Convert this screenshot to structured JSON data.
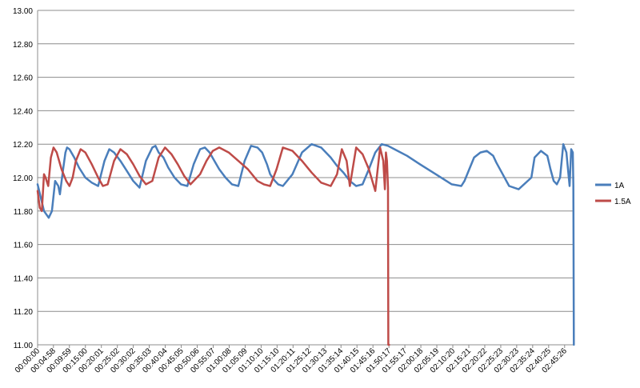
{
  "chart_data": {
    "type": "line",
    "title": "",
    "xlabel": "",
    "ylabel": "",
    "ylim": [
      11.0,
      13.0
    ],
    "yticks": [
      "11.00",
      "11.20",
      "11.40",
      "11.60",
      "11.80",
      "12.00",
      "12.20",
      "12.40",
      "12.60",
      "12.80",
      "13.00"
    ],
    "xlim": [
      "00:00:00",
      "02:48:30"
    ],
    "xticks": [
      "00:00:00",
      "00:04:58",
      "00:09:59",
      "00:15:00",
      "00:20:01",
      "00:25:02",
      "00:30:02",
      "00:35:03",
      "00:40:04",
      "00:45:05",
      "00:50:06",
      "00:55:07",
      "01:00:08",
      "01:05:09",
      "01:10:10",
      "01:15:10",
      "01:20:11",
      "01:25:12",
      "01:30:13",
      "01:35:14",
      "01:40:15",
      "01:45:16",
      "01:50:17",
      "01:55:17",
      "02:00:18",
      "02:05:19",
      "02:10:20",
      "02:15:21",
      "02:20:22",
      "02:25:23",
      "02:30:23",
      "02:35:24",
      "02:40:25",
      "02:45:26"
    ],
    "grid": true,
    "legend": "right",
    "series": [
      {
        "name": "1A",
        "color": "#4a7ebb",
        "x": [
          "00:00:00",
          "00:01:00",
          "00:02:00",
          "00:03:30",
          "00:04:30",
          "00:05:30",
          "00:06:30",
          "00:07:00",
          "00:08:00",
          "00:08:45",
          "00:09:15",
          "00:10:00",
          "00:11:30",
          "00:13:00",
          "00:15:00",
          "00:17:00",
          "00:19:00",
          "00:21:00",
          "00:22:30",
          "00:24:00",
          "00:26:00",
          "00:28:00",
          "00:30:00",
          "00:32:00",
          "00:34:00",
          "00:36:00",
          "00:37:00",
          "00:38:00",
          "00:39:30",
          "00:41:00",
          "00:43:00",
          "00:45:00",
          "00:47:00",
          "00:49:00",
          "00:51:00",
          "00:52:30",
          "00:54:00",
          "00:55:30",
          "00:57:00",
          "00:59:00",
          "01:01:00",
          "01:03:00",
          "01:05:00",
          "01:07:00",
          "01:09:00",
          "01:10:30",
          "01:12:00",
          "01:13:00",
          "01:14:30",
          "01:15:30",
          "01:17:00",
          "01:20:00",
          "01:23:00",
          "01:26:00",
          "01:29:00",
          "01:32:00",
          "01:34:00",
          "01:36:00",
          "01:38:00",
          "01:40:00",
          "01:42:00",
          "01:44:00",
          "01:46:00",
          "01:48:00",
          "01:50:00",
          "01:52:00",
          "01:56:00",
          "02:00:00",
          "02:05:00",
          "02:10:00",
          "02:13:00",
          "02:14:00",
          "02:15:30",
          "02:17:00",
          "02:19:00",
          "02:21:00",
          "02:23:00",
          "02:24:00",
          "02:26:00",
          "02:28:00",
          "02:31:00",
          "02:35:00",
          "02:36:00",
          "02:38:00",
          "02:40:00",
          "02:41:00",
          "02:42:00",
          "02:43:00",
          "02:44:00",
          "02:45:00",
          "02:46:00",
          "02:47:00",
          "02:47:30",
          "02:48:00",
          "02:48:10",
          "02:48:20"
        ],
        "y": [
          11.96,
          11.88,
          11.8,
          11.76,
          11.8,
          11.98,
          11.95,
          11.9,
          12.05,
          12.15,
          12.18,
          12.17,
          12.12,
          12.06,
          12.0,
          11.97,
          11.95,
          12.1,
          12.17,
          12.15,
          12.1,
          12.04,
          11.98,
          11.94,
          12.1,
          12.18,
          12.19,
          12.15,
          12.12,
          12.06,
          12.0,
          11.96,
          11.95,
          12.08,
          12.17,
          12.18,
          12.15,
          12.1,
          12.05,
          12.0,
          11.96,
          11.95,
          12.1,
          12.19,
          12.18,
          12.15,
          12.08,
          12.02,
          11.98,
          11.96,
          11.95,
          12.02,
          12.15,
          12.2,
          12.18,
          12.12,
          12.07,
          12.03,
          11.98,
          11.95,
          11.96,
          12.05,
          12.15,
          12.2,
          12.19,
          12.17,
          12.13,
          12.08,
          12.02,
          11.96,
          11.95,
          11.98,
          12.05,
          12.12,
          12.15,
          12.16,
          12.13,
          12.09,
          12.02,
          11.95,
          11.93,
          12.0,
          12.12,
          12.16,
          12.13,
          12.05,
          11.98,
          11.96,
          12.0,
          12.2,
          12.15,
          11.95,
          12.17,
          12.15,
          11.95,
          11.0
        ]
      },
      {
        "name": "1.5A",
        "color": "#be4b48",
        "x": [
          "00:00:00",
          "00:00:40",
          "00:01:20",
          "00:02:00",
          "00:02:30",
          "00:03:20",
          "00:04:10",
          "00:05:00",
          "00:06:00",
          "00:07:30",
          "00:09:00",
          "00:10:00",
          "00:11:00",
          "00:12:00",
          "00:13:30",
          "00:15:00",
          "00:17:00",
          "00:19:00",
          "00:20:30",
          "00:22:00",
          "00:24:00",
          "00:26:00",
          "00:28:00",
          "00:30:00",
          "00:32:00",
          "00:34:00",
          "00:36:00",
          "00:38:00",
          "00:40:00",
          "00:42:00",
          "00:44:00",
          "00:46:00",
          "00:48:00",
          "00:51:00",
          "00:53:00",
          "00:55:00",
          "00:57:00",
          "01:00:00",
          "01:03:00",
          "01:06:00",
          "01:09:00",
          "01:11:00",
          "01:13:00",
          "01:15:00",
          "01:17:00",
          "01:20:00",
          "01:23:00",
          "01:26:00",
          "01:29:00",
          "01:32:00",
          "01:34:00",
          "01:35:30",
          "01:37:00",
          "01:38:00",
          "01:40:00",
          "01:42:00",
          "01:44:00",
          "01:46:00",
          "01:47:30",
          "01:48:30",
          "01:49:00",
          "01:49:20",
          "01:49:40",
          "01:50:00",
          "01:50:05",
          "01:50:20"
        ],
        "y": [
          11.92,
          11.82,
          11.8,
          12.02,
          12.0,
          11.95,
          12.12,
          12.18,
          12.15,
          12.05,
          11.98,
          11.95,
          12.0,
          12.1,
          12.17,
          12.15,
          12.08,
          12.0,
          11.95,
          11.96,
          12.1,
          12.17,
          12.14,
          12.08,
          12.01,
          11.96,
          11.98,
          12.12,
          12.18,
          12.14,
          12.08,
          12.01,
          11.96,
          12.02,
          12.1,
          12.16,
          12.18,
          12.15,
          12.1,
          12.05,
          11.98,
          11.96,
          11.95,
          12.05,
          12.18,
          12.16,
          12.1,
          12.03,
          11.97,
          11.95,
          12.02,
          12.17,
          12.1,
          11.95,
          12.18,
          12.14,
          12.05,
          11.92,
          12.18,
          12.1,
          11.93,
          12.15,
          12.1,
          11.94,
          11.0,
          11.0
        ]
      }
    ]
  }
}
